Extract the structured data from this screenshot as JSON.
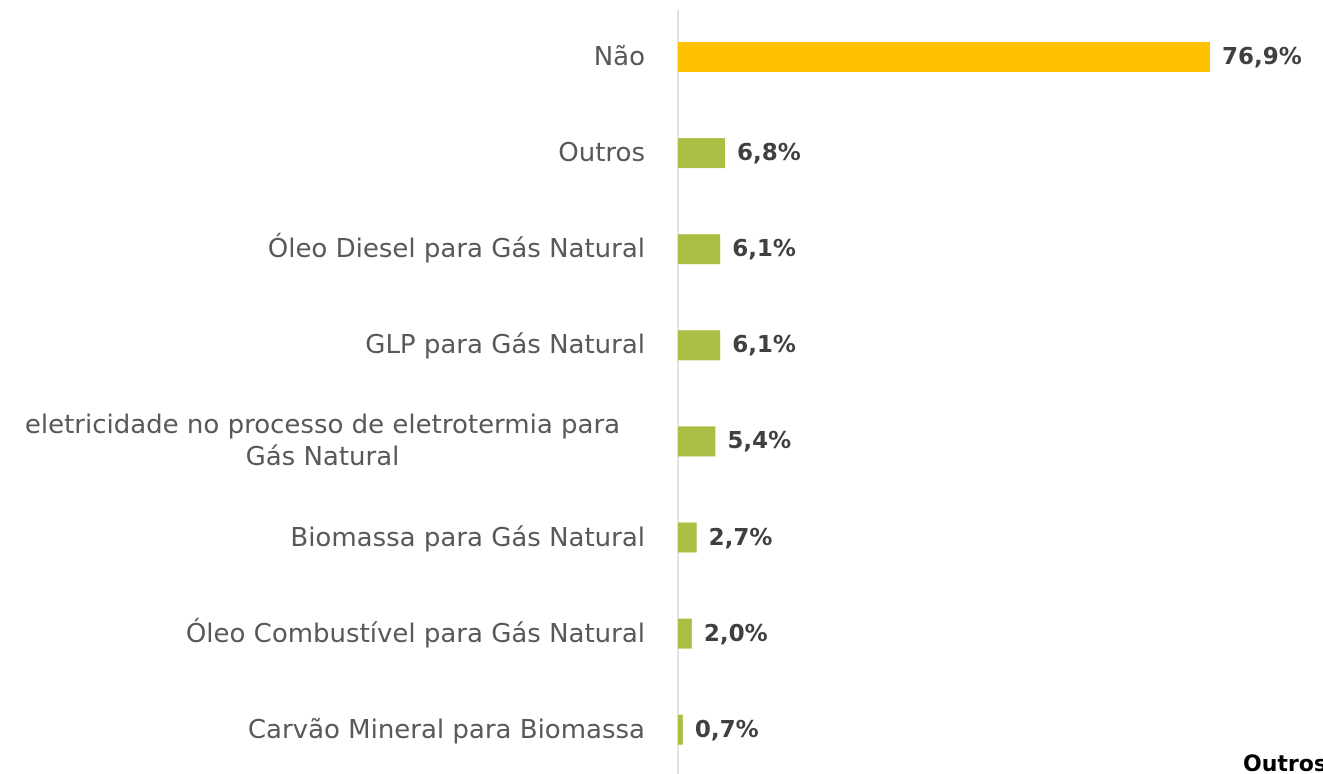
{
  "chart_data": {
    "type": "bar",
    "orientation": "horizontal",
    "categories": [
      "Não",
      "Outros",
      "Óleo Diesel para Gás Natural",
      "GLP para Gás Natural",
      "eletricidade no processo de eletrotermia para Gás Natural",
      "Biomassa para Gás Natural",
      "Óleo Combustível para Gás Natural",
      "Carvão Mineral para Biomassa"
    ],
    "values": [
      76.9,
      6.8,
      6.1,
      6.1,
      5.4,
      2.7,
      2.0,
      0.7
    ],
    "value_labels": [
      "76,9%",
      "6,8%",
      "6,1%",
      "6,1%",
      "5,4%",
      "2,7%",
      "2,0%",
      "0,7%"
    ],
    "colors": [
      "#ffc000",
      "#a9bf44",
      "#a9bf44",
      "#a9bf44",
      "#a9bf44",
      "#a9bf44",
      "#a9bf44",
      "#a9bf44"
    ],
    "annotation": "Outros"
  }
}
